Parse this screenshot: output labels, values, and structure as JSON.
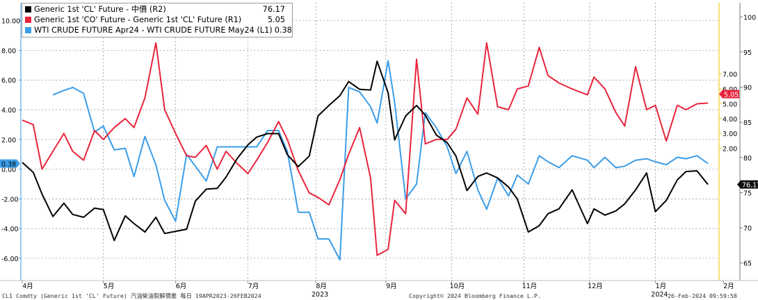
{
  "chart_data": {
    "type": "line",
    "legend_placement": "top-left",
    "grid": true,
    "series": [
      {
        "name": "Generic 1st 'CL' Future - 中價 (R2)",
        "last_value": "76.17",
        "axis": "R2",
        "color": "#000000",
        "x": [
          "2023-04-19",
          "2023-04-24",
          "2023-04-28",
          "2023-05-03",
          "2023-05-08",
          "2023-05-12",
          "2023-05-17",
          "2023-05-22",
          "2023-05-26",
          "2023-05-31",
          "2023-06-05",
          "2023-06-09",
          "2023-06-14",
          "2023-06-19",
          "2023-06-23",
          "2023-06-28",
          "2023-07-03",
          "2023-07-07",
          "2023-07-12",
          "2023-07-17",
          "2023-07-21",
          "2023-07-26",
          "2023-07-31",
          "2023-08-04",
          "2023-08-09",
          "2023-08-14",
          "2023-08-18",
          "2023-08-23",
          "2023-08-28",
          "2023-09-01",
          "2023-09-06",
          "2023-09-11",
          "2023-09-15",
          "2023-09-20",
          "2023-09-25",
          "2023-09-28",
          "2023-10-03",
          "2023-10-06",
          "2023-10-11",
          "2023-10-16",
          "2023-10-20",
          "2023-10-25",
          "2023-10-30",
          "2023-11-03",
          "2023-11-08",
          "2023-11-13",
          "2023-11-17",
          "2023-11-22",
          "2023-11-27",
          "2023-12-01",
          "2023-12-06",
          "2023-12-11",
          "2023-12-15",
          "2023-12-20",
          "2023-12-26",
          "2024-01-02",
          "2024-01-05",
          "2024-01-10",
          "2024-01-15",
          "2024-01-19",
          "2024-01-24",
          "2024-01-29",
          "2024-02-02",
          "2024-02-07",
          "2024-02-12",
          "2024-02-16",
          "2024-02-21",
          "2024-02-26"
        ],
        "y": [
          79.3,
          77.9,
          74.8,
          71.6,
          73.5,
          71.9,
          71.5,
          72.8,
          72.6,
          68.2,
          71.7,
          70.6,
          69.4,
          71.5,
          69.2,
          69.5,
          69.8,
          73.8,
          75.5,
          75.6,
          77.2,
          79.8,
          81.8,
          82.9,
          83.4,
          83.4,
          80.4,
          78.7,
          80.2,
          85.9,
          87.4,
          88.8,
          90.8,
          89.7,
          89.6,
          93.7,
          89.2,
          82.5,
          85.9,
          87.4,
          86.0,
          83.2,
          82.1,
          80.2,
          75.3,
          77.3,
          77.8,
          77.1,
          75.8,
          74.1,
          69.4,
          70.3,
          72.0,
          72.7,
          75.4,
          70.6,
          72.7,
          71.8,
          72.4,
          73.4,
          75.4,
          77.8,
          72.3,
          73.9,
          76.8,
          78.0,
          78.1,
          76.17
        ]
      },
      {
        "name": "Generic 1st 'CO' Future - Generic 1st 'CL' Future (R1)",
        "last_value": "5.05",
        "axis": "R1",
        "color": "#e8243c",
        "x": [
          "2023-04-19",
          "2023-04-24",
          "2023-04-28",
          "2023-05-03",
          "2023-05-08",
          "2023-05-12",
          "2023-05-17",
          "2023-05-22",
          "2023-05-26",
          "2023-05-31",
          "2023-06-05",
          "2023-06-09",
          "2023-06-14",
          "2023-06-19",
          "2023-06-23",
          "2023-06-28",
          "2023-07-03",
          "2023-07-07",
          "2023-07-12",
          "2023-07-17",
          "2023-07-21",
          "2023-07-26",
          "2023-07-31",
          "2023-08-04",
          "2023-08-09",
          "2023-08-14",
          "2023-08-18",
          "2023-08-23",
          "2023-08-28",
          "2023-09-01",
          "2023-09-06",
          "2023-09-11",
          "2023-09-15",
          "2023-09-20",
          "2023-09-25",
          "2023-09-28",
          "2023-10-03",
          "2023-10-06",
          "2023-10-11",
          "2023-10-16",
          "2023-10-20",
          "2023-10-25",
          "2023-10-30",
          "2023-11-03",
          "2023-11-08",
          "2023-11-13",
          "2023-11-17",
          "2023-11-22",
          "2023-11-27",
          "2023-12-01",
          "2023-12-06",
          "2023-12-11",
          "2023-12-15",
          "2023-12-20",
          "2023-12-26",
          "2024-01-02",
          "2024-01-05",
          "2024-01-10",
          "2024-01-15",
          "2024-01-19",
          "2024-01-24",
          "2024-01-29",
          "2024-02-02",
          "2024-02-07",
          "2024-02-12",
          "2024-02-16",
          "2024-02-21",
          "2024-02-26"
        ],
        "y": [
          3.9,
          3.6,
          0.6,
          1.8,
          3.0,
          1.8,
          1.2,
          3.2,
          2.6,
          3.4,
          4.0,
          3.4,
          5.4,
          9.1,
          4.6,
          3.0,
          1.5,
          1.4,
          2.2,
          0.6,
          1.8,
          1.0,
          0.3,
          1.2,
          2.4,
          3.8,
          2.6,
          0.5,
          -1.0,
          -1.3,
          -1.8,
          -0.1,
          1.6,
          3.4,
          0.0,
          -5.2,
          -4.8,
          -1.5,
          -2.4,
          8.0,
          2.3,
          2.6,
          2.6,
          3.3,
          5.4,
          4.3,
          9.1,
          4.8,
          4.6,
          6.0,
          6.2,
          8.8,
          6.9,
          6.4,
          6.0,
          5.6,
          6.8,
          6.0,
          4.4,
          3.5,
          7.5,
          4.6,
          4.9,
          2.5,
          4.9,
          4.6,
          5.0,
          5.05
        ]
      },
      {
        "name": "WTI CRUDE FUTURE Apr24 - WTI CRUDE FUTURE May24 (L1)",
        "last_value": "0.38",
        "axis": "L1",
        "color": "#3b9de8",
        "x": [
          "2023-05-03",
          "2023-05-08",
          "2023-05-12",
          "2023-05-17",
          "2023-05-22",
          "2023-05-26",
          "2023-05-31",
          "2023-06-05",
          "2023-06-09",
          "2023-06-14",
          "2023-06-19",
          "2023-06-23",
          "2023-06-28",
          "2023-07-03",
          "2023-07-07",
          "2023-07-12",
          "2023-07-17",
          "2023-07-21",
          "2023-07-26",
          "2023-07-31",
          "2023-08-04",
          "2023-08-09",
          "2023-08-14",
          "2023-08-18",
          "2023-08-23",
          "2023-08-28",
          "2023-09-01",
          "2023-09-06",
          "2023-09-11",
          "2023-09-15",
          "2023-09-20",
          "2023-09-25",
          "2023-09-28",
          "2023-10-03",
          "2023-10-06",
          "2023-10-11",
          "2023-10-16",
          "2023-10-20",
          "2023-10-25",
          "2023-10-30",
          "2023-11-03",
          "2023-11-08",
          "2023-11-13",
          "2023-11-17",
          "2023-11-22",
          "2023-11-27",
          "2023-12-01",
          "2023-12-06",
          "2023-12-11",
          "2023-12-15",
          "2023-12-20",
          "2023-12-26",
          "2024-01-02",
          "2024-01-05",
          "2024-01-10",
          "2024-01-15",
          "2024-01-19",
          "2024-01-24",
          "2024-01-29",
          "2024-02-02",
          "2024-02-07",
          "2024-02-12",
          "2024-02-16",
          "2024-02-21",
          "2024-02-26"
        ],
        "y": [
          5.0,
          5.3,
          5.5,
          5.1,
          2.5,
          2.9,
          1.3,
          1.4,
          -0.5,
          2.2,
          0.3,
          -2.1,
          -3.5,
          1.0,
          0.2,
          -0.8,
          1.5,
          1.5,
          1.5,
          1.5,
          1.5,
          2.6,
          2.6,
          1.2,
          -2.9,
          -2.9,
          -4.7,
          -4.7,
          -6.1,
          5.5,
          5.2,
          4.2,
          3.1,
          7.3,
          4.5,
          -2.0,
          -1.0,
          3.8,
          2.8,
          1.5,
          -0.3,
          1.2,
          -1.4,
          -2.7,
          -0.6,
          -1.8,
          -0.4,
          -1.0,
          0.9,
          0.5,
          0.1,
          0.9,
          0.6,
          0.1,
          0.8,
          0.1,
          0.2,
          0.6,
          0.7,
          0.5,
          0.3,
          0.8,
          0.7,
          0.9,
          0.38
        ]
      }
    ],
    "x_range": [
      "2023-04-19",
      "2024-02-26"
    ],
    "left_axis": {
      "id": "L1",
      "min": -7.5,
      "max": 11.2,
      "ticks": [
        -6,
        -4,
        -2,
        0,
        2,
        4,
        6,
        8,
        10
      ],
      "tick_labels": [
        "-6.00",
        "-4.00",
        "-2.00",
        "0.00",
        "2.00",
        "4.00",
        "6.00",
        "8.00",
        "10.00"
      ]
    },
    "right_axis_1": {
      "id": "R1",
      "min": -6.9,
      "max": 11.8,
      "ticks": [
        2,
        3,
        4,
        5,
        6,
        7
      ],
      "tick_labels": [
        "2.00",
        "3.00",
        "4.00",
        "5.00",
        "6.00",
        "7.00"
      ],
      "color": "#f2c200"
    },
    "right_axis_2": {
      "id": "R2",
      "min": 62.5,
      "max": 102.0,
      "ticks": [
        65,
        70,
        75,
        80,
        85,
        90,
        95,
        100
      ],
      "tick_labels": [
        "65",
        "70",
        "75",
        "80",
        "85",
        "90",
        "95",
        "100"
      ]
    },
    "x_ticks": [
      {
        "date": "2023-04-19",
        "label": "4月"
      },
      {
        "date": "2023-05-26",
        "label": "5月"
      },
      {
        "date": "2023-06-28",
        "label": "6月"
      },
      {
        "date": "2023-07-31",
        "label": "7月"
      },
      {
        "date": "2023-08-31",
        "label": "8月"
      },
      {
        "date": "2023-10-02",
        "label": "9月"
      },
      {
        "date": "2023-11-01",
        "label": "10月"
      },
      {
        "date": "2023-12-04",
        "label": "11月"
      },
      {
        "date": "2024-01-03",
        "label": "12月"
      },
      {
        "date": "2024-02-02",
        "label": "1月"
      },
      {
        "date": "2024-03-04",
        "label": "2月"
      }
    ],
    "year_labels": [
      {
        "date": "2023-08-31",
        "label": "2023"
      },
      {
        "date": "2024-02-02",
        "label": "2024"
      }
    ],
    "value_flags": {
      "left": "0.38",
      "r1": "5.05",
      "r2": "76.17"
    }
  },
  "legend": [
    {
      "label": "Generic 1st 'CL' Future - 中價 (R2)",
      "value": "76.17",
      "color": "#000000"
    },
    {
      "label": "Generic 1st 'CO' Future - Generic 1st 'CL' Future (R1)",
      "value": "5.05",
      "color": "#e8243c"
    },
    {
      "label": "WTI CRUDE FUTURE Apr24 - WTI CRUDE FUTURE May24 (L1)",
      "value": "0.38",
      "color": "#3b9de8"
    }
  ],
  "footer": {
    "left": "CL1 Comdty (Generic 1st 'CL' Future) 汽油柴油裂解價差  每日 19APR2023-26FEB2024",
    "center": "Copyright© 2024 Bloomberg Finance L.P.",
    "right": "26-Feb-2024 09:59:58"
  }
}
